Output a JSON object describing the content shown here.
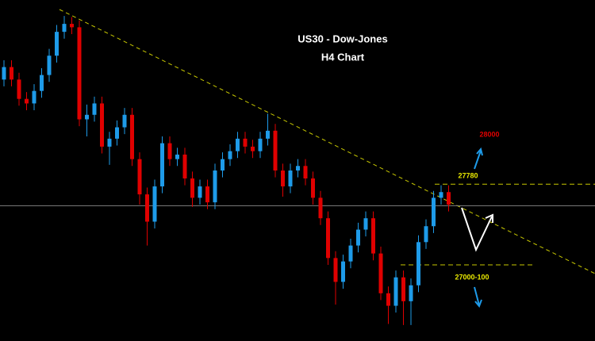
{
  "chart_data": {
    "type": "candlestick",
    "title": "US30 - Dow-Jones",
    "subtitle": "H4 Chart",
    "ylim": [
      26400,
      29400
    ],
    "up_color": "#1e9be9",
    "down_color": "#e00000",
    "candles": {
      "open": [
        28700,
        28810,
        28700,
        28530,
        28490,
        28600,
        28740,
        28910,
        29120,
        29190,
        29160,
        28350,
        28390,
        28490,
        28110,
        28180,
        28280,
        28390,
        28000,
        27690,
        27450,
        27760,
        28140,
        28000,
        28040,
        27830,
        27660,
        27760,
        27620,
        27900,
        28000,
        28070,
        28180,
        28110,
        28070,
        28180,
        28250,
        27900,
        27760,
        27900,
        27940,
        27830,
        27660,
        27480,
        27130,
        26920,
        27100,
        27240,
        27380,
        27480,
        27170,
        26820,
        26710,
        26960,
        26750,
        26890,
        27270,
        27410,
        27660,
        27710
      ],
      "high": [
        28870,
        28870,
        28760,
        28590,
        28660,
        28800,
        28970,
        29180,
        29260,
        29250,
        29220,
        28480,
        28550,
        28550,
        28240,
        28340,
        28450,
        28450,
        28060,
        27750,
        27820,
        28200,
        28200,
        28100,
        28100,
        27890,
        27820,
        27820,
        27960,
        28060,
        28130,
        28240,
        28240,
        28170,
        28240,
        28400,
        28310,
        27960,
        27960,
        28000,
        28000,
        27890,
        27720,
        27540,
        27190,
        27160,
        27300,
        27440,
        27540,
        27540,
        27230,
        26880,
        27020,
        27020,
        26950,
        27330,
        27470,
        27720,
        27770,
        27770
      ],
      "low": [
        28640,
        28640,
        28470,
        28430,
        28430,
        28540,
        28680,
        28850,
        29060,
        29100,
        28290,
        28200,
        28330,
        28050,
        27950,
        28120,
        28220,
        27940,
        27600,
        27240,
        27390,
        27700,
        27940,
        27940,
        27770,
        27580,
        27600,
        27560,
        27560,
        27840,
        27940,
        28010,
        28050,
        28010,
        28010,
        28120,
        27840,
        27670,
        27700,
        27840,
        27770,
        27600,
        27420,
        27070,
        26720,
        26860,
        27040,
        27180,
        27320,
        27110,
        26760,
        26550,
        26650,
        26540,
        26540,
        26830,
        27210,
        27350,
        27600,
        27540
      ],
      "close": [
        28810,
        28700,
        28530,
        28490,
        28600,
        28740,
        28910,
        29120,
        29190,
        29160,
        28350,
        28390,
        28490,
        28110,
        28180,
        28280,
        28390,
        28000,
        27690,
        27450,
        27760,
        28140,
        28000,
        28040,
        27830,
        27660,
        27760,
        27620,
        27900,
        28000,
        28070,
        28180,
        28110,
        28070,
        28180,
        28250,
        27900,
        27760,
        27900,
        27940,
        27830,
        27660,
        27480,
        27130,
        26920,
        27100,
        27240,
        27380,
        27480,
        27170,
        26820,
        26710,
        26960,
        26750,
        26890,
        27270,
        27410,
        27660,
        27710,
        27600
      ]
    },
    "price_line": 27590,
    "levels": [
      {
        "value": 27780,
        "label": "27780"
      },
      {
        "value": 27070,
        "label": "27000-100"
      }
    ],
    "annotations": [
      "28000"
    ]
  }
}
